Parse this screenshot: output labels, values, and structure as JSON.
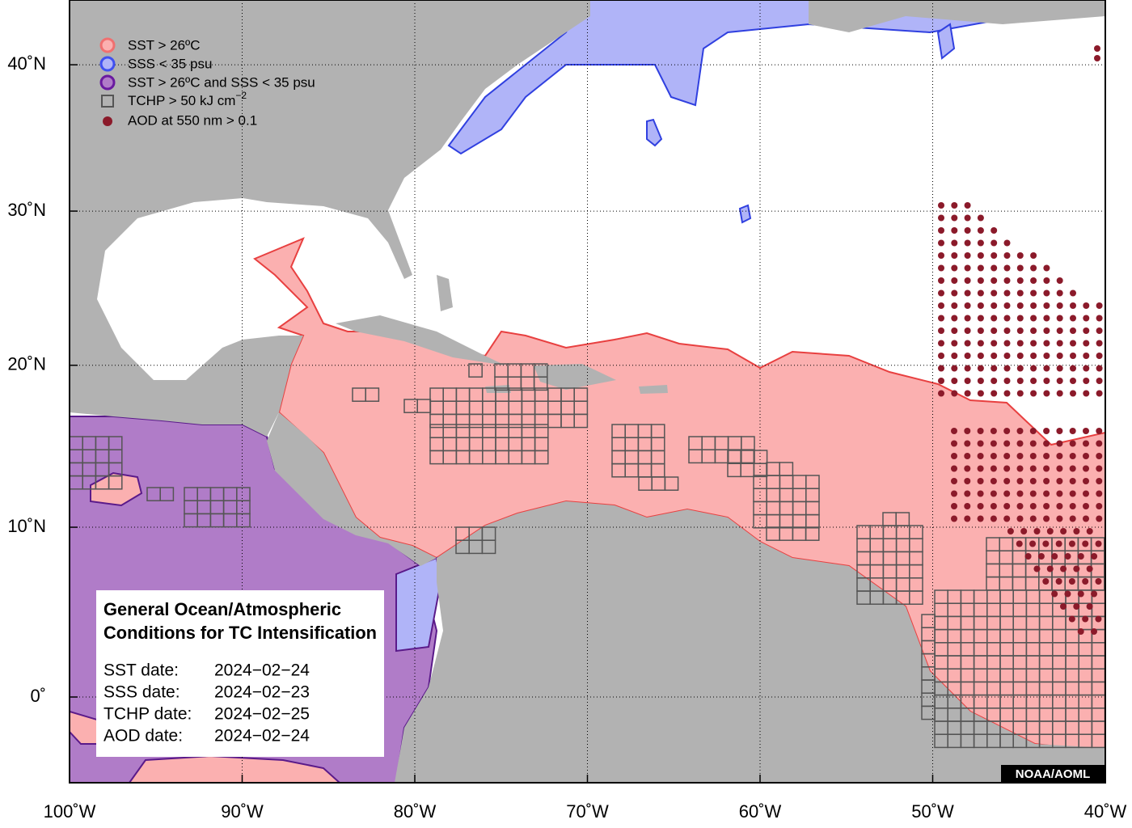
{
  "map": {
    "legend": [
      {
        "label": "SST > 26ºC"
      },
      {
        "label": "SSS < 35 psu"
      },
      {
        "label": "SST > 26ºC and SSS < 35 psu"
      },
      {
        "label": "TCHP > 50 kJ cm",
        "superscript": "−2"
      },
      {
        "label": "AOD at 550 nm > 0.1"
      }
    ],
    "x_ticks": [
      {
        "value": -100,
        "label": "100˚W"
      },
      {
        "value": -90,
        "label": "90˚W"
      },
      {
        "value": -80,
        "label": "80˚W"
      },
      {
        "value": -70,
        "label": "70˚W"
      },
      {
        "value": -60,
        "label": "60˚W"
      },
      {
        "value": -50,
        "label": "50˚W"
      },
      {
        "value": -40,
        "label": "40˚W"
      }
    ],
    "y_ticks": [
      {
        "value": 0,
        "label": "0˚"
      },
      {
        "value": 10,
        "label": "10˚N"
      },
      {
        "value": 20,
        "label": "20˚N"
      },
      {
        "value": 30,
        "label": "30˚N"
      },
      {
        "value": 40,
        "label": "40˚N"
      }
    ],
    "info": {
      "title": [
        "General Ocean/Atmospheric",
        "Conditions for TC Intensification"
      ],
      "dates": [
        {
          "label": "SST date:",
          "value": "2024−02−24"
        },
        {
          "label": "SSS date:",
          "value": "2024−02−23"
        },
        {
          "label": "TCHP date:",
          "value": "2024−02−25"
        },
        {
          "label": "AOD date:",
          "value": "2024−02−24"
        }
      ]
    },
    "credit": "NOAA/AOML"
  }
}
